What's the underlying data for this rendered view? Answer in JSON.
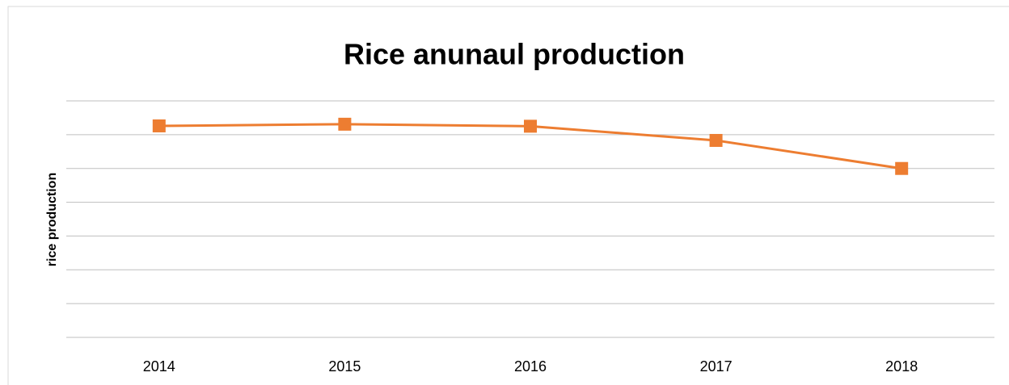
{
  "chart_data": {
    "type": "line",
    "title": "Rice anunaul production",
    "y_label": "rice production",
    "categories": [
      "2014",
      "2015",
      "2016",
      "2017",
      "2018"
    ],
    "series": [
      {
        "name": "rice production",
        "color": "#ed7d31",
        "values": [
          6.26,
          6.31,
          6.25,
          5.83,
          5.0
        ]
      }
    ],
    "ylim": [
      0,
      7
    ],
    "yticks": [
      0,
      1,
      2,
      3,
      4,
      5,
      6,
      7
    ],
    "grid": true
  }
}
